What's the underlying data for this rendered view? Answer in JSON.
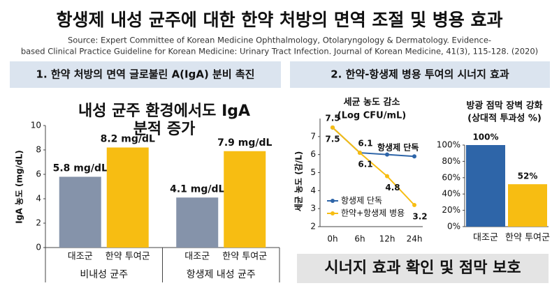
{
  "title": "항생제 내성 균주에 대한 한약 처방의 면역 조절 및 병용 효과",
  "source": [
    "Source: Expert Committee of Korean Medicine Ophthalmology, Otolaryngology & Dermatology. Evidence-",
    "based Clinical Practice Guideline for Korean Medicine: Urinary Tract Infection. Journal of Korean Medicine, 41(3), 115-128. (2020)"
  ],
  "sections": [
    "1. 한약 처방의 면역 글로불린 A(IgA) 분비 촉진",
    "2. 한약-항생제 병용 투여의 시너지 효과"
  ],
  "banner": "시너지 효과 확인 및 점막 보호",
  "chart_data": [
    {
      "type": "grouped-bar",
      "title": [
        "내성 균주 환경에서도 IgA",
        "분적 증가"
      ],
      "y_label": "IgA 농도 (mg/dL)",
      "groups": [
        "비내성 균주",
        "항생제 내성 균주"
      ],
      "categories": [
        "대조군",
        "한약 투여군"
      ],
      "series": [
        {
          "color": "#8593aa",
          "values": [
            5.8,
            4.1
          ],
          "value_labels": [
            "5.8 mg/dL",
            "4.1 mg/dL"
          ]
        },
        {
          "color": "#f7bd12",
          "values": [
            8.2,
            7.9
          ],
          "value_labels": [
            "8.2 mg/dL",
            "7.9 mg/dL"
          ]
        }
      ],
      "ylim": [
        0,
        10
      ],
      "yticks": [
        0,
        2,
        4,
        6,
        8,
        10
      ]
    },
    {
      "type": "line",
      "title": [
        "세균 농도 감소",
        "(Log CFU/mL)"
      ],
      "y_label": "세균 농도 (감/L)",
      "annotation": "항생제 단독",
      "categories": [
        "0h",
        "6h",
        "12h",
        "24h"
      ],
      "series": [
        {
          "name": "항생제 단독",
          "color": "#2e65a8",
          "values": [
            7.5,
            6.1,
            6.0,
            5.9
          ],
          "value_labels": [
            "7.5",
            "6.1",
            null,
            null
          ]
        },
        {
          "name": "한약+항생제 병용",
          "color": "#f7bd12",
          "values": [
            7.5,
            6.1,
            4.8,
            3.2
          ],
          "value_labels": [
            "7.5",
            "6.1",
            "4.8",
            "3.2"
          ]
        }
      ],
      "ylim": [
        2,
        8
      ],
      "yticks": [
        2,
        3,
        4,
        5,
        6,
        7
      ]
    },
    {
      "type": "bar",
      "title": [
        "방광 점막 장벽 강화",
        "(상대적 투과성 %)"
      ],
      "categories": [
        "대조군",
        "한약 투여군"
      ],
      "values": [
        100,
        52
      ],
      "value_labels": [
        "100%",
        "52%"
      ],
      "colors": [
        "#2e65a8",
        "#f7bd12"
      ],
      "ylim": [
        0,
        100
      ],
      "yticks": [
        {
          "value": 0,
          "label": "0%"
        },
        {
          "value": 20,
          "label": "20%"
        },
        {
          "value": 40,
          "label": "40%"
        },
        {
          "value": 60,
          "label": "60%"
        },
        {
          "value": 80,
          "label": "80%"
        },
        {
          "value": 100,
          "label": "100%"
        }
      ]
    }
  ]
}
